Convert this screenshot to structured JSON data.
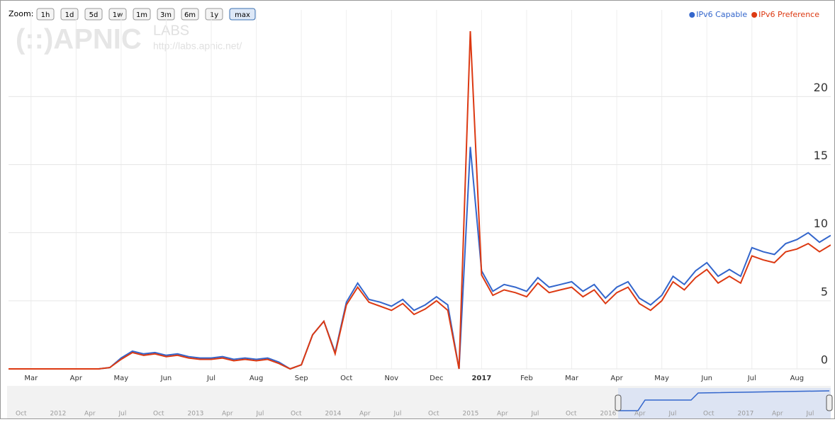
{
  "chart_data": {
    "type": "line",
    "zoom_label": "Zoom:",
    "zoom_buttons": [
      "1h",
      "1d",
      "5d",
      "1w",
      "1m",
      "3m",
      "6m",
      "1y",
      "max"
    ],
    "watermark": [
      "(::)APNIC",
      "LABS",
      "http://labs.apnic.net/"
    ],
    "legend": "top-right",
    "categories": [
      null,
      null,
      "Mar",
      null,
      null,
      null,
      "Apr",
      null,
      null,
      null,
      "May",
      null,
      null,
      null,
      "Jun",
      null,
      null,
      null,
      "Jul",
      null,
      null,
      null,
      "Aug",
      null,
      null,
      null,
      "Sep",
      null,
      null,
      null,
      "Oct",
      null,
      null,
      null,
      "Nov",
      null,
      null,
      null,
      "Dec",
      null,
      null,
      null,
      "2017",
      null,
      null,
      null,
      "Feb",
      null,
      null,
      null,
      "Mar",
      null,
      null,
      null,
      "Apr",
      null,
      null,
      null,
      "May",
      null,
      null,
      null,
      "Jun",
      null,
      null,
      null,
      "Jul",
      null,
      null,
      null,
      "Aug",
      null,
      null,
      null
    ],
    "series": [
      {
        "name": "IPv6 Capable",
        "color": "#3366cc",
        "values": [
          0,
          0,
          0,
          0,
          0,
          0,
          0,
          0,
          0,
          0.1,
          0.8,
          1.3,
          1.1,
          1.2,
          1.0,
          1.1,
          0.9,
          0.8,
          0.8,
          0.9,
          0.7,
          0.8,
          0.7,
          0.8,
          0.5,
          0,
          0.3,
          2.5,
          3.5,
          1.2,
          4.9,
          6.3,
          5.1,
          4.9,
          4.6,
          5.1,
          4.3,
          4.7,
          5.3,
          4.7,
          0,
          16.3,
          7.2,
          5.7,
          6.2,
          6.0,
          5.7,
          6.7,
          6.0,
          6.2,
          6.4,
          5.7,
          6.2,
          5.2,
          6.0,
          6.4,
          5.2,
          4.7,
          5.4,
          6.8,
          6.2,
          7.2,
          7.8,
          6.8,
          7.3,
          6.8,
          8.9,
          8.6,
          8.4,
          9.2,
          9.5,
          10.0,
          9.3,
          9.8
        ]
      },
      {
        "name": "IPv6 Preference",
        "color": "#dc3912",
        "values": [
          0,
          0,
          0,
          0,
          0,
          0,
          0,
          0,
          0,
          0.1,
          0.7,
          1.2,
          1.0,
          1.1,
          0.9,
          1.0,
          0.8,
          0.7,
          0.7,
          0.8,
          0.6,
          0.7,
          0.6,
          0.7,
          0.4,
          0,
          0.3,
          2.5,
          3.5,
          1.1,
          4.7,
          6.0,
          4.9,
          4.6,
          4.3,
          4.8,
          4.0,
          4.4,
          5.0,
          4.3,
          0,
          24.8,
          6.9,
          5.4,
          5.8,
          5.6,
          5.3,
          6.3,
          5.6,
          5.8,
          6.0,
          5.3,
          5.8,
          4.8,
          5.6,
          6.0,
          4.8,
          4.3,
          5.0,
          6.4,
          5.8,
          6.7,
          7.3,
          6.3,
          6.8,
          6.3,
          8.3,
          8.0,
          7.8,
          8.6,
          8.8,
          9.2,
          8.6,
          9.1
        ]
      }
    ],
    "ylim": [
      0,
      24.8
    ],
    "yticks": [
      0,
      5,
      10,
      15,
      20
    ],
    "grid": true,
    "navigator_labels": [
      "Oct",
      "2012",
      "Apr",
      "Jul",
      "Oct",
      "2013",
      "Apr",
      "Jul",
      "Oct",
      "2014",
      "Apr",
      "Jul",
      "Oct",
      "2015",
      "Apr",
      "Jul",
      "Oct",
      "2016",
      "Apr",
      "Jul",
      "Oct",
      "2017",
      "Apr",
      "Jul"
    ]
  }
}
